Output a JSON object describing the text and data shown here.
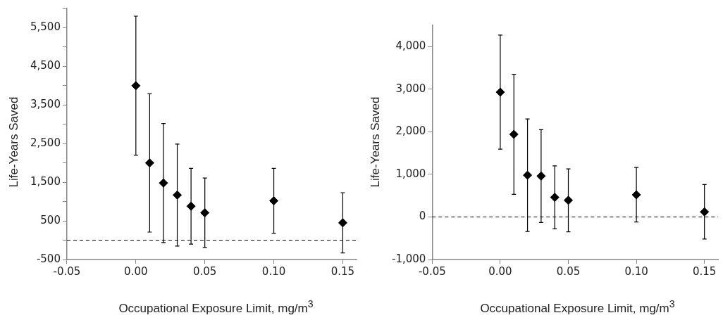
{
  "chart_data": [
    {
      "type": "scatter",
      "xlabel": "Occupational Exposure Limit, mg/m$^{3}$",
      "ylabel": "Life-Years Saved",
      "x": [
        0,
        0.01,
        0.02,
        0.03,
        0.04,
        0.05,
        0.1,
        0.15
      ],
      "series": [
        {
          "color": "#000000",
          "values": [
            4000,
            2000,
            1480,
            1170,
            880,
            710,
            1020,
            450
          ],
          "errors": [
            1800,
            1790,
            1540,
            1320,
            980,
            900,
            840,
            780
          ]
        }
      ],
      "xlim": [
        -0.05,
        0.16
      ],
      "xticks": [
        {
          "value": -0.05,
          "label": "-0.05"
        },
        {
          "value": 0,
          "label": "0.00"
        },
        {
          "value": 0.05,
          "label": "0.05"
        },
        {
          "value": 0.1,
          "label": "0.10"
        },
        {
          "value": 0.15,
          "label": "0.15"
        }
      ],
      "ylim": [
        -500,
        6000
      ],
      "yticks": [
        {
          "value": -500,
          "label": "-500"
        },
        {
          "value": 0,
          "label": null
        },
        {
          "value": 500,
          "label": "500"
        },
        {
          "value": 1000,
          "label": null
        },
        {
          "value": 1500,
          "label": "1,500"
        },
        {
          "value": 2000,
          "label": null
        },
        {
          "value": 2500,
          "label": "2,500"
        },
        {
          "value": 3000,
          "label": null
        },
        {
          "value": 3500,
          "label": "3,500"
        },
        {
          "value": 4000,
          "label": null
        },
        {
          "value": 4500,
          "label": "4,500"
        },
        {
          "value": 5000,
          "label": null
        },
        {
          "value": 5500,
          "label": "5,500"
        },
        {
          "value": 6000,
          "label": null
        }
      ],
      "ref_lines": [
        {
          "axis": "y",
          "value": 0,
          "line_style": "dashed",
          "color": "#000000"
        }
      ],
      "marker": "diamond",
      "grid": false,
      "legend": false
    },
    {
      "type": "scatter",
      "xlabel": "Occupational Exposure Limit, mg/m$^{3}$",
      "ylabel": "Life-Years Saved",
      "x": [
        0,
        0.01,
        0.02,
        0.03,
        0.04,
        0.05,
        0.1,
        0.15
      ],
      "series": [
        {
          "color": "#000000",
          "values": [
            2930,
            1940,
            980,
            960,
            460,
            390,
            520,
            120
          ],
          "errors": [
            1340,
            1410,
            1320,
            1090,
            740,
            740,
            640,
            640
          ]
        }
      ],
      "xlim": [
        -0.05,
        0.16
      ],
      "xticks": [
        {
          "value": -0.05,
          "label": "-0.05"
        },
        {
          "value": 0,
          "label": "0.00"
        },
        {
          "value": 0.05,
          "label": "0.05"
        },
        {
          "value": 0.1,
          "label": "0.10"
        },
        {
          "value": 0.15,
          "label": "0.15"
        }
      ],
      "ylim": [
        -1000,
        4500
      ],
      "yticks": [
        {
          "value": -1000,
          "label": "-1,000"
        },
        {
          "value": 0,
          "label": "0"
        },
        {
          "value": 1000,
          "label": "1,000"
        },
        {
          "value": 2000,
          "label": "2,000"
        },
        {
          "value": 3000,
          "label": "3,000"
        },
        {
          "value": 4000,
          "label": "4,000"
        }
      ],
      "ref_lines": [
        {
          "axis": "y",
          "value": 0,
          "line_style": "dashed",
          "color": "#000000"
        }
      ],
      "marker": "diamond",
      "grid": false,
      "legend": false
    }
  ]
}
